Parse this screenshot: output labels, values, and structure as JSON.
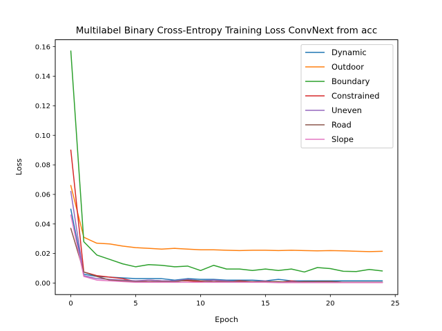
{
  "chart_data": {
    "type": "line",
    "title": "Multilabel Binary Cross-Entropy Training Loss ConvNext from acc",
    "xlabel": "Epoch",
    "ylabel": "Loss",
    "xlim": [
      -1.2,
      25.2
    ],
    "ylim": [
      -0.0078,
      0.1647
    ],
    "xticks": [
      0,
      5,
      10,
      15,
      20,
      25
    ],
    "yticks": [
      0.0,
      0.02,
      0.04,
      0.06,
      0.08,
      0.1,
      0.12,
      0.14,
      0.16
    ],
    "ytick_labels": [
      "0.00",
      "0.02",
      "0.04",
      "0.06",
      "0.08",
      "0.10",
      "0.12",
      "0.14",
      "0.16"
    ],
    "grid": false,
    "legend_position": "top-right",
    "x": [
      0,
      1,
      2,
      3,
      4,
      5,
      6,
      7,
      8,
      9,
      10,
      11,
      12,
      13,
      14,
      15,
      16,
      17,
      18,
      19,
      20,
      21,
      22,
      23,
      24
    ],
    "series": [
      {
        "name": "Dynamic",
        "color": "#1f77b4",
        "values": [
          0.05,
          0.006,
          0.0045,
          0.004,
          0.0035,
          0.003,
          0.003,
          0.003,
          0.002,
          0.003,
          0.0025,
          0.0025,
          0.002,
          0.002,
          0.002,
          0.0015,
          0.0025,
          0.0015,
          0.0015,
          0.0015,
          0.0015,
          0.0015,
          0.0015,
          0.0015,
          0.0015
        ]
      },
      {
        "name": "Outdoor",
        "color": "#ff7f0e",
        "values": [
          0.066,
          0.031,
          0.027,
          0.0265,
          0.025,
          0.024,
          0.0235,
          0.023,
          0.0235,
          0.023,
          0.0225,
          0.0225,
          0.0222,
          0.022,
          0.0222,
          0.0222,
          0.022,
          0.0222,
          0.022,
          0.0218,
          0.022,
          0.0218,
          0.0215,
          0.0213,
          0.0215
        ]
      },
      {
        "name": "Boundary",
        "color": "#2ca02c",
        "values": [
          0.157,
          0.028,
          0.019,
          0.016,
          0.013,
          0.011,
          0.0125,
          0.012,
          0.011,
          0.0115,
          0.0085,
          0.012,
          0.0095,
          0.0095,
          0.0085,
          0.0095,
          0.0085,
          0.0095,
          0.0075,
          0.0105,
          0.0098,
          0.008,
          0.0078,
          0.0092,
          0.0082
        ]
      },
      {
        "name": "Constrained",
        "color": "#d62728",
        "values": [
          0.09,
          0.0075,
          0.005,
          0.004,
          0.003,
          0.001,
          0.002,
          0.0015,
          0.0015,
          0.0015,
          0.001,
          0.002,
          0.001,
          0.0015,
          0.001,
          0.001,
          0.0005,
          0.0015,
          0.0005,
          0.001,
          0.001,
          0.0005,
          0.0005,
          0.0005,
          0.0005
        ]
      },
      {
        "name": "Uneven",
        "color": "#9467bd",
        "values": [
          0.062,
          0.005,
          0.003,
          0.0025,
          0.002,
          0.0015,
          0.002,
          0.0015,
          0.0015,
          0.0025,
          0.0015,
          0.002,
          0.0015,
          0.001,
          0.001,
          0.0015,
          0.0005,
          0.001,
          0.001,
          0.0005,
          0.0005,
          0.0005,
          0.0005,
          0.0005,
          0.0005
        ]
      },
      {
        "name": "Road",
        "color": "#8c564b",
        "values": [
          0.037,
          0.0075,
          0.0045,
          0.002,
          0.0015,
          0.001,
          0.001,
          0.001,
          0.001,
          0.002,
          0.0015,
          0.001,
          0.001,
          0.001,
          0.001,
          0.001,
          0.001,
          0.0005,
          0.001,
          0.001,
          0.001,
          0.0005,
          0.0005,
          0.0005,
          0.0005
        ]
      },
      {
        "name": "Slope",
        "color": "#e377c2",
        "values": [
          0.046,
          0.0045,
          0.002,
          0.0015,
          0.001,
          0.0005,
          0.0005,
          0.0005,
          0.0005,
          0.0005,
          0.0005,
          0.0005,
          0.0005,
          0.0005,
          0.0005,
          0.0005,
          0.0003,
          0.0003,
          0.0003,
          0.0003,
          0.0003,
          0.0003,
          0.0003,
          0.0003,
          0.0003
        ]
      }
    ]
  }
}
